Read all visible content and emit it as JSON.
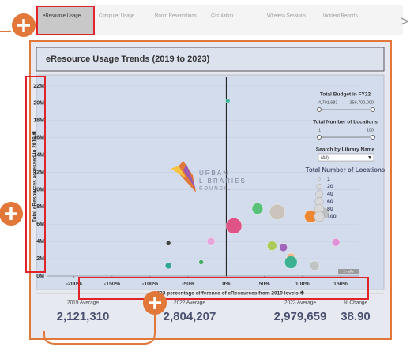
{
  "tabs": [
    "eResource Usage",
    "Computer Usage",
    "Room Reservations",
    "Circulation",
    "Wireless Sessions",
    "Incident Reports"
  ],
  "next_arrow": ">",
  "dashboard": {
    "title": "eResource Usage Trends (2019 to 2023)",
    "filters": {
      "budget_label": "Total Budget in FY22",
      "budget_min": "4,701,683",
      "budget_max": "359,700,000",
      "locations_label": "Total Number of Locations",
      "locations_min": "1",
      "locations_max": "100",
      "search_label": "Search by Library Name",
      "search_value": "(All)"
    },
    "logo": [
      "URBAN",
      "LIBRARIES",
      "COUNCIL"
    ],
    "stats": [
      {
        "label": "2019 Average",
        "value": "2,121,310"
      },
      {
        "label": "2022 Average",
        "value": "2,804,207"
      },
      {
        "label": "2023 Average",
        "value": "2,979,659"
      },
      {
        "label": "% Change",
        "value": "38.90"
      }
    ]
  },
  "chart_data": {
    "type": "scatter",
    "x_label": "2023 percentage difference of eResources from 2019 levels ✱",
    "y_label": "Total eResources accessed in 2019 ✱",
    "x": [
      2,
      10,
      41,
      67,
      111,
      129,
      -20,
      -76,
      -76,
      60,
      75,
      85,
      85,
      116,
      144,
      -33
    ],
    "y": [
      20300000,
      5800000,
      7800000,
      7400000,
      6900000,
      7300000,
      4000000,
      1200000,
      3800000,
      3500000,
      3300000,
      2100000,
      1600000,
      1200000,
      3900000,
      1600000
    ],
    "sizes": [
      13,
      268,
      119,
      268,
      162,
      119,
      53,
      30,
      13,
      83,
      53,
      83,
      162,
      83,
      53,
      13
    ],
    "colors": [
      "#3fb59b",
      "#e0457b",
      "#4cbf6b",
      "#c9c1b8",
      "#f07d1e",
      "#bdbdbd",
      "#e8a0d8",
      "#1f9e89",
      "#333333",
      "#a7c84a",
      "#9b59b6",
      "#f4b183",
      "#2bae8c",
      "#bfbfbf",
      "#e28ad4",
      "#3aa655"
    ],
    "xlim": [
      -235,
      175
    ],
    "ylim": [
      0,
      23000000
    ],
    "xticks": [
      {
        "value": -200,
        "label": "-200%"
      },
      {
        "value": -150,
        "label": "-150%"
      },
      {
        "value": -100,
        "label": "-100%"
      },
      {
        "value": -50,
        "label": "-50%"
      },
      {
        "value": 0,
        "label": "0%"
      },
      {
        "value": 50,
        "label": "50%"
      },
      {
        "value": 100,
        "label": "100%"
      },
      {
        "value": 150,
        "label": "150%"
      }
    ],
    "yticks": [
      {
        "value": 0,
        "label": "0M"
      },
      {
        "value": 2000000,
        "label": "2M"
      },
      {
        "value": 4000000,
        "label": "4M"
      },
      {
        "value": 6000000,
        "label": "6M"
      },
      {
        "value": 8000000,
        "label": "8M"
      },
      {
        "value": 10000000,
        "label": "10M"
      },
      {
        "value": 12000000,
        "label": "12M"
      },
      {
        "value": 14000000,
        "label": "14M"
      },
      {
        "value": 16000000,
        "label": "16M"
      },
      {
        "value": 18000000,
        "label": "18M"
      },
      {
        "value": 20000000,
        "label": "20M"
      },
      {
        "value": 22000000,
        "label": "22M"
      }
    ],
    "grid": true,
    "size_legend": {
      "title": "Total Number of Locations",
      "values": [
        1,
        20,
        40,
        60,
        80,
        100
      ]
    },
    "nulls_label": "2 nulls"
  }
}
